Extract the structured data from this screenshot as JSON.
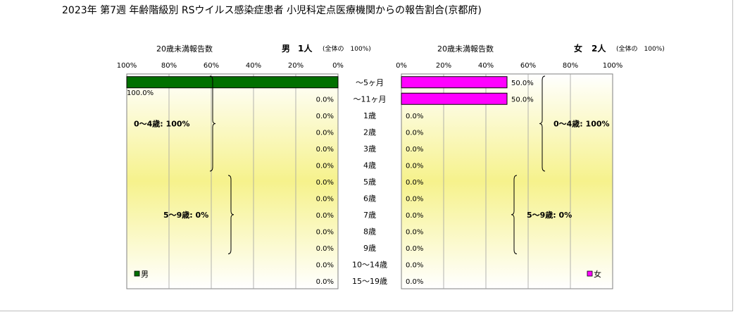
{
  "title": "2023年 第7週 年齢階級別 RSウイルス感染症患者 小児科定点医療機関からの報告割合(京都府)",
  "chart_data": [
    {
      "type": "bar",
      "side": "left",
      "orientation": "horizontal",
      "direction": "right-to-left",
      "caption": "20歳未満報告数",
      "sex_label": "男",
      "count_label": "1人",
      "total_note": "(全体の　100%)",
      "xlim": [
        0,
        100
      ],
      "ticks": [
        "100%",
        "80%",
        "60%",
        "40%",
        "20%",
        "0%"
      ],
      "categories": [
        "～5ヶ月",
        "～11ヶ月",
        "1歳",
        "2歳",
        "3歳",
        "4歳",
        "5歳",
        "6歳",
        "7歳",
        "8歳",
        "9歳",
        "10～14歳",
        "15～19歳"
      ],
      "values": [
        100,
        0,
        0,
        0,
        0,
        0,
        0,
        0,
        0,
        0,
        0,
        0,
        0
      ],
      "value_labels": [
        "100.0%",
        "0.0%",
        "0.0%",
        "0.0%",
        "0.0%",
        "0.0%",
        "0.0%",
        "0.0%",
        "0.0%",
        "0.0%",
        "0.0%",
        "0.0%",
        "0.0%"
      ],
      "color": "#007000",
      "legend": "男",
      "groups": [
        {
          "label": "0～4歳: 100%",
          "from": 0,
          "to": 5
        },
        {
          "label": "5～9歳: 0%",
          "from": 6,
          "to": 10
        }
      ]
    },
    {
      "type": "bar",
      "side": "right",
      "orientation": "horizontal",
      "direction": "left-to-right",
      "caption": "20歳未満報告数",
      "sex_label": "女",
      "count_label": "2人",
      "total_note": "(全体の　100%)",
      "xlim": [
        0,
        100
      ],
      "ticks": [
        "0%",
        "20%",
        "40%",
        "60%",
        "80%",
        "100%"
      ],
      "categories": [
        "～5ヶ月",
        "～11ヶ月",
        "1歳",
        "2歳",
        "3歳",
        "4歳",
        "5歳",
        "6歳",
        "7歳",
        "8歳",
        "9歳",
        "10～14歳",
        "15～19歳"
      ],
      "values": [
        50,
        50,
        0,
        0,
        0,
        0,
        0,
        0,
        0,
        0,
        0,
        0,
        0
      ],
      "value_labels": [
        "50.0%",
        "50.0%",
        "0.0%",
        "0.0%",
        "0.0%",
        "0.0%",
        "0.0%",
        "0.0%",
        "0.0%",
        "0.0%",
        "0.0%",
        "0.0%",
        "0.0%"
      ],
      "color": "#ff00ff",
      "legend": "女",
      "groups": [
        {
          "label": "0～4歳: 100%",
          "from": 0,
          "to": 5
        },
        {
          "label": "5～9歳: 0%",
          "from": 6,
          "to": 10
        }
      ]
    }
  ]
}
